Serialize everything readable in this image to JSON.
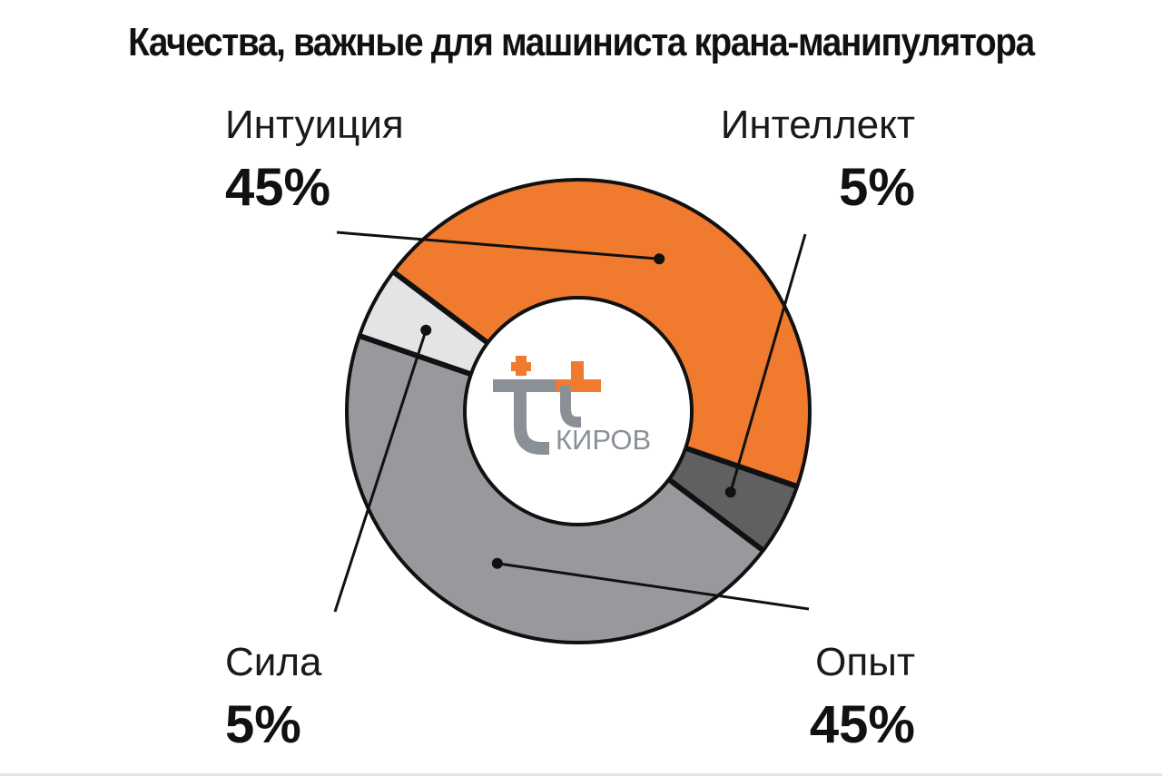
{
  "chart_data": {
    "type": "pie",
    "title": "Качества, важные для машиниста крана-манипулятора",
    "slices": [
      {
        "label": "Интуиция",
        "value": 45,
        "value_label": "45%",
        "color": "#f07a2e"
      },
      {
        "label": "Интеллект",
        "value": 5,
        "value_label": "5%",
        "color": "#5f6062"
      },
      {
        "label": "Опыт",
        "value": 45,
        "value_label": "45%",
        "color": "#98999c"
      },
      {
        "label": "Сила",
        "value": 5,
        "value_label": "5%",
        "color": "#e3e4e5"
      }
    ],
    "donut": true
  },
  "logo": {
    "text": "КИРОВ",
    "colors": {
      "orange": "#f07a2e",
      "gray": "#8a9096"
    }
  }
}
